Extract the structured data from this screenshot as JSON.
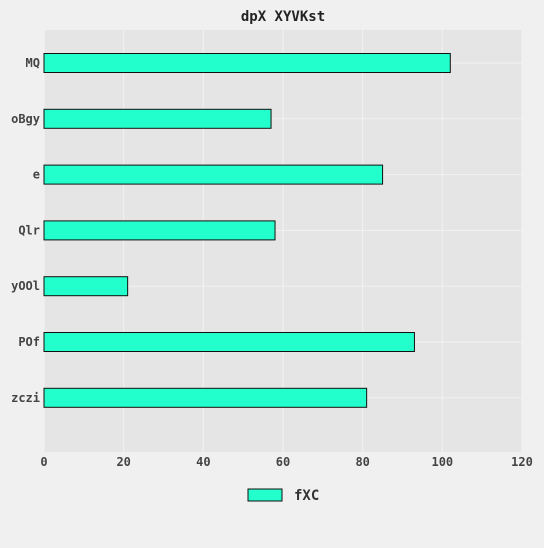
{
  "chart_data": {
    "type": "bar",
    "orientation": "horizontal",
    "title": "dpX XYVKst",
    "xlabel": "",
    "ylabel": "",
    "categories": [
      "MQ",
      "oBgy",
      "e",
      "Qlr",
      "yOOl",
      "POf",
      "zczi"
    ],
    "series": [
      {
        "name": "fXC",
        "values": [
          102,
          57,
          85,
          58,
          21,
          93,
          81
        ],
        "color": "#22ffcc"
      }
    ],
    "xlim": [
      0,
      120
    ],
    "xticks": [
      "0",
      "20",
      "40",
      "60",
      "80",
      "100",
      "120"
    ],
    "grid": true,
    "legend": "bottom-center"
  },
  "colors": {
    "page_bg": "#f0f0f0",
    "plot_bg": "#e5e5e5",
    "grid": "#f2f2f2",
    "bar_edge": "#111111",
    "text": "#444444",
    "title": "#222222"
  }
}
